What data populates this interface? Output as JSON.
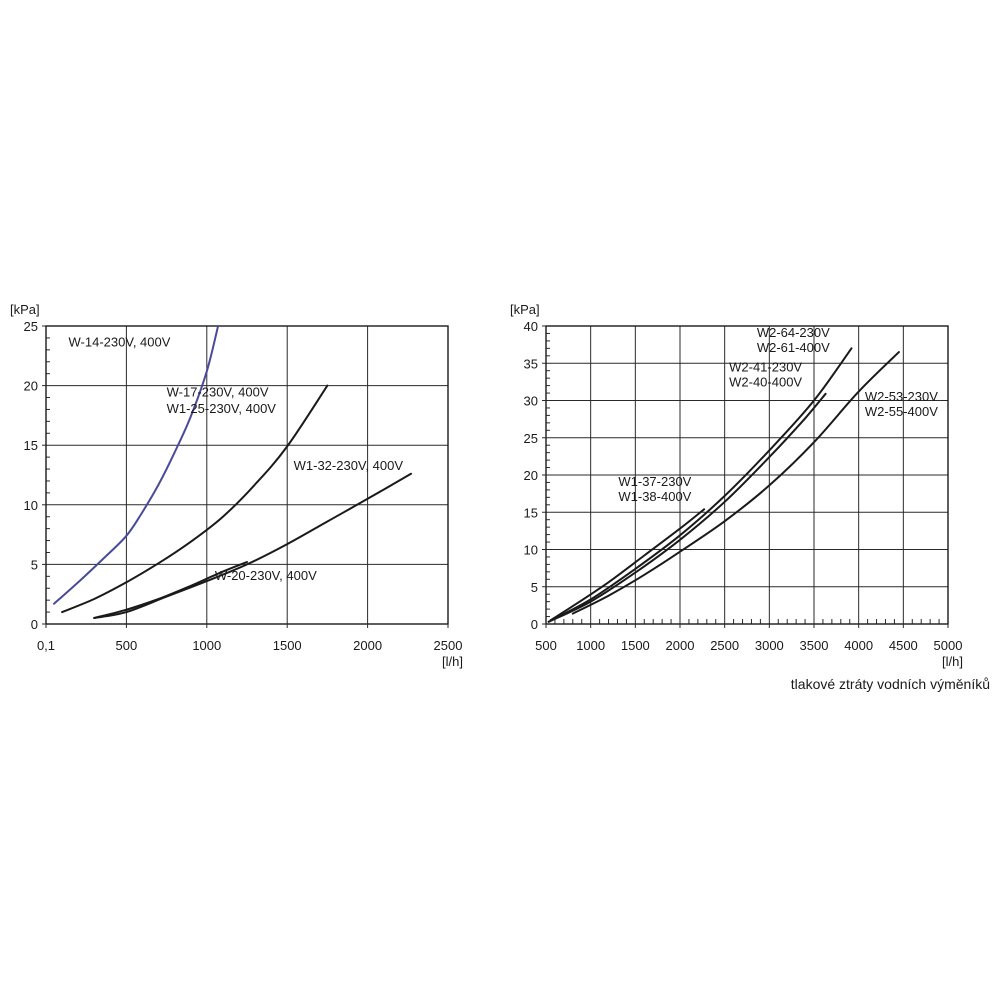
{
  "caption": "tlakové ztráty vodních výměníků",
  "chart_data": [
    {
      "type": "line",
      "ylabel": "[kPa]",
      "xlabel": "[l/h]",
      "xlim": [
        0,
        2500
      ],
      "ylim": [
        0,
        25
      ],
      "x_tick_labels": [
        "0,1",
        "500",
        "1000",
        "1500",
        "2000",
        "2500"
      ],
      "x_tick_values": [
        0,
        500,
        1000,
        1500,
        2000,
        2500
      ],
      "y_ticks": [
        0,
        5,
        10,
        15,
        20,
        25
      ],
      "grid": true,
      "series": [
        {
          "name": "W-14-230V, 400V",
          "color": "#4a4a9a",
          "x": [
            50,
            200,
            350,
            500,
            600,
            700,
            800,
            900,
            1000,
            1070
          ],
          "y": [
            1.7,
            3.5,
            5.4,
            7.4,
            9.4,
            11.7,
            14.4,
            17.4,
            21.2,
            25
          ]
        },
        {
          "name": "W-17-230V, 400V / W1-25-230V, 400V",
          "color": "#1a1a1a",
          "x": [
            100,
            300,
            500,
            700,
            900,
            1100,
            1300,
            1500,
            1750
          ],
          "y": [
            1.0,
            2.1,
            3.5,
            5.1,
            6.9,
            9.0,
            11.7,
            14.9,
            20.0
          ]
        },
        {
          "name": "W-20-230V, 400V",
          "color": "#1a1a1a",
          "x": [
            300,
            500,
            700,
            900,
            1100,
            1250
          ],
          "y": [
            0.5,
            1.2,
            2.1,
            3.2,
            4.4,
            5.2
          ]
        },
        {
          "name": "W1-32-230V, 400V",
          "color": "#1a1a1a",
          "x": [
            300,
            500,
            750,
            1000,
            1250,
            1500,
            1750,
            2000,
            2270
          ],
          "y": [
            0.5,
            1.0,
            2.3,
            3.6,
            5.0,
            6.7,
            8.6,
            10.5,
            12.6
          ]
        }
      ],
      "annotations": [
        {
          "text": "W-14-230V, 400V",
          "x": 140,
          "y": 23.3
        },
        {
          "text": "W-17-230V, 400V",
          "x": 750,
          "y": 19.1
        },
        {
          "text": "W1-25-230V, 400V",
          "x": 750,
          "y": 17.7
        },
        {
          "text": "W1-32-230V, 400V",
          "x": 1540,
          "y": 12.9
        },
        {
          "text": "W-20-230V, 400V",
          "x": 1050,
          "y": 3.7
        }
      ]
    },
    {
      "type": "line",
      "ylabel": "[kPa]",
      "xlabel": "[l/h]",
      "xlim": [
        500,
        5000
      ],
      "ylim": [
        0,
        40
      ],
      "x_ticks": [
        500,
        1000,
        1500,
        2000,
        2500,
        3000,
        3500,
        4000,
        4500,
        5000
      ],
      "y_ticks": [
        0,
        5,
        10,
        15,
        20,
        25,
        30,
        35,
        40
      ],
      "grid": true,
      "series": [
        {
          "name": "W1-37-230V / W1-38-400V",
          "color": "#1a1a1a",
          "x": [
            550,
            800,
            1200,
            1600,
            2000,
            2270
          ],
          "y": [
            0.5,
            2.4,
            5.6,
            9.2,
            12.8,
            15.4
          ]
        },
        {
          "name": "W2-64-230V / W2-61-400V",
          "color": "#1a1a1a",
          "x": [
            530,
            1000,
            1500,
            2000,
            2500,
            3000,
            3500,
            3920
          ],
          "y": [
            0.3,
            3.3,
            7.4,
            11.9,
            17.2,
            23.3,
            30.0,
            37.0
          ]
        },
        {
          "name": "W2-41-230V / W2-40-400V",
          "color": "#1a1a1a",
          "x": [
            530,
            1000,
            1500,
            2000,
            2500,
            3000,
            3400,
            3630
          ],
          "y": [
            0.3,
            3.0,
            6.9,
            11.3,
            16.4,
            22.4,
            27.6,
            30.9
          ]
        },
        {
          "name": "W2-53-230V / W2-55-400V",
          "color": "#1a1a1a",
          "x": [
            800,
            1200,
            1600,
            2000,
            2500,
            3000,
            3500,
            4000,
            4450
          ],
          "y": [
            1.4,
            3.8,
            6.6,
            9.7,
            13.8,
            18.6,
            24.4,
            31.2,
            36.5
          ]
        }
      ],
      "annotations": [
        {
          "text": "W2-64-230V",
          "x": 2860,
          "y": 38.5
        },
        {
          "text": "W2-61-400V",
          "x": 2860,
          "y": 36.5
        },
        {
          "text": "W2-41-230V",
          "x": 2550,
          "y": 33.9
        },
        {
          "text": "W2-40-400V",
          "x": 2550,
          "y": 31.9
        },
        {
          "text": "W2-53-230V",
          "x": 4070,
          "y": 29.9
        },
        {
          "text": "W2-55-400V",
          "x": 4070,
          "y": 27.9
        },
        {
          "text": "W1-37-230V",
          "x": 1310,
          "y": 18.5
        },
        {
          "text": "W1-38-400V",
          "x": 1310,
          "y": 16.5
        }
      ]
    }
  ]
}
